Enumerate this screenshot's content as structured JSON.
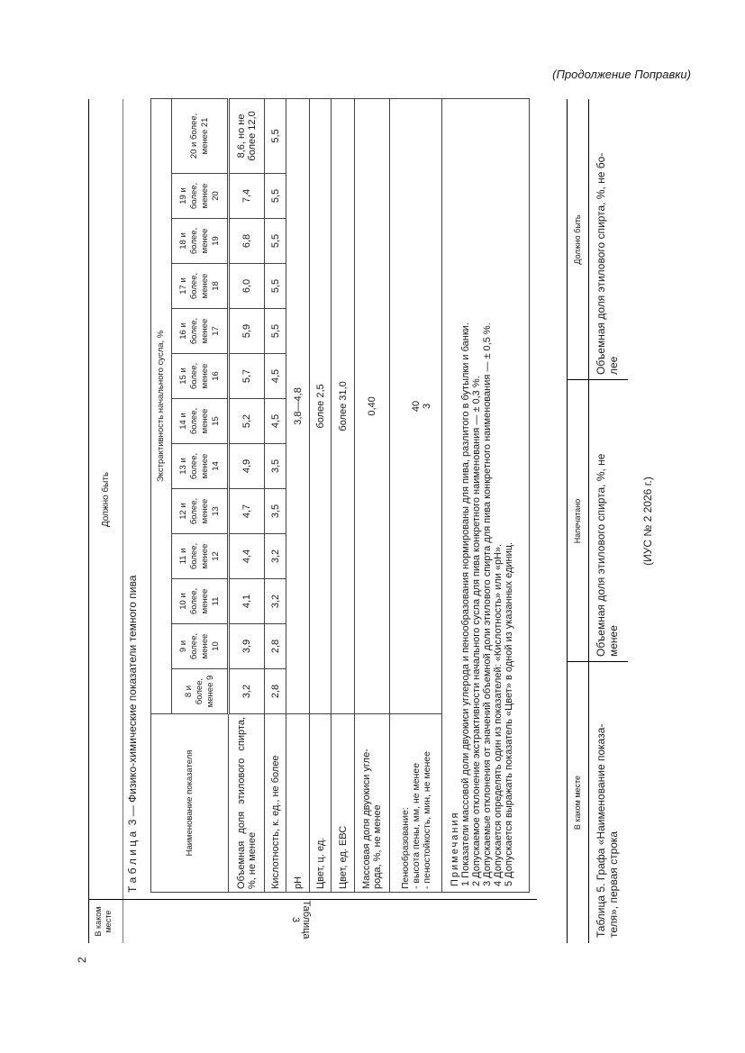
{
  "header": {
    "continuation": "(Продолжение Поправки)",
    "page_number": "2"
  },
  "section1": {
    "col_place": "В каком\nместе",
    "col_should": "Должно быть",
    "place_value": "Таблица 3",
    "caption": "Т а б л и ц а  3 — Физико-химические показатели темного пива",
    "table": {
      "name_header": "Наименование показателя",
      "group_header": "Экстрактивность начального сусла, %",
      "columns": [
        "8 и\nболее,\nменее 9",
        "9 и\nболее,\nменее\n10",
        "10 и\nболее,\nменее\n11",
        "11 и\nболее,\nменее\n12",
        "12 и\nболее,\nменее\n13",
        "13 и\nболее,\nменее\n14",
        "14 и\nболее,\nменее\n15",
        "15 и\nболее,\nменее\n16",
        "16 и\nболее,\nменее\n17",
        "17 и\nболее,\nменее\n18",
        "18 и\nболее,\nменее\n19",
        "19 и\nболее,\nменее\n20",
        "20 и более,\nменее 21"
      ],
      "row_alcohol": {
        "name": "Объемная доля этилового спирта, %, не менее",
        "values": [
          "3,2",
          "3,9",
          "4,1",
          "4,4",
          "4,7",
          "4,9",
          "5,2",
          "5,7",
          "5,9",
          "6,0",
          "6,8",
          "7,4",
          "8,6, но не\nболее 12,0"
        ]
      },
      "row_acidity": {
        "name": "Кислотность, к. ед., не более",
        "values": [
          "2,8",
          "2,8",
          "3,2",
          "3,2",
          "3,5",
          "3,5",
          "4,5",
          "4,5",
          "5,5",
          "5,5",
          "5,5",
          "5,5",
          "5,5"
        ]
      },
      "row_ph": {
        "name": "pH",
        "value": "3,8—4,8"
      },
      "row_color_c": {
        "name": "Цвет, ц. ед.",
        "value": "более 2,5"
      },
      "row_color_ebc": {
        "name": "Цвет, ед. ЕВС",
        "value": "более 31,0"
      },
      "row_co2": {
        "name": "Массовая доля двуокиси угле-\nрода, %, не менее",
        "value": "0,40"
      },
      "row_foam": {
        "name_title": "Пенообразование:",
        "name_height": "- высота пены, мм, не менее",
        "name_stability": "- пеностойкость, мин, не менее",
        "value_height": "40",
        "value_stability": "3"
      },
      "notes": {
        "title": "Примечания",
        "items": [
          "1 Показатели массовой доли двуокиси углерода и пенообразования нормированы для пива, разлитого в бутылки и банки.",
          "2 Допускаемое отклонение экстрактивности начального сусла для пива конкретного наименования — ± 0,3 %.",
          "3 Допускаемые отклонения от значений объемной доли этилового спирта для пива конкретного наименования — ± 0,5 %.",
          "4 Допускается определять один из показателей: «Кислотность» или «pH».",
          "5 Допускается выражать показатель «Цвет» в одной из указанных единиц."
        ]
      }
    }
  },
  "section2": {
    "headers": [
      "В каком месте",
      "Напечатано",
      "Должно быть"
    ],
    "cells": [
      "Таблица 5. Графа «Наименование показа-\nтеля», первая строка",
      "Объемная доля этилового спирта, %, не\nменее",
      "Объемная доля этилового спирта, %, не бо-\nлее"
    ]
  },
  "footer": {
    "issue": "(ИУС № 2 2026 г.)"
  }
}
